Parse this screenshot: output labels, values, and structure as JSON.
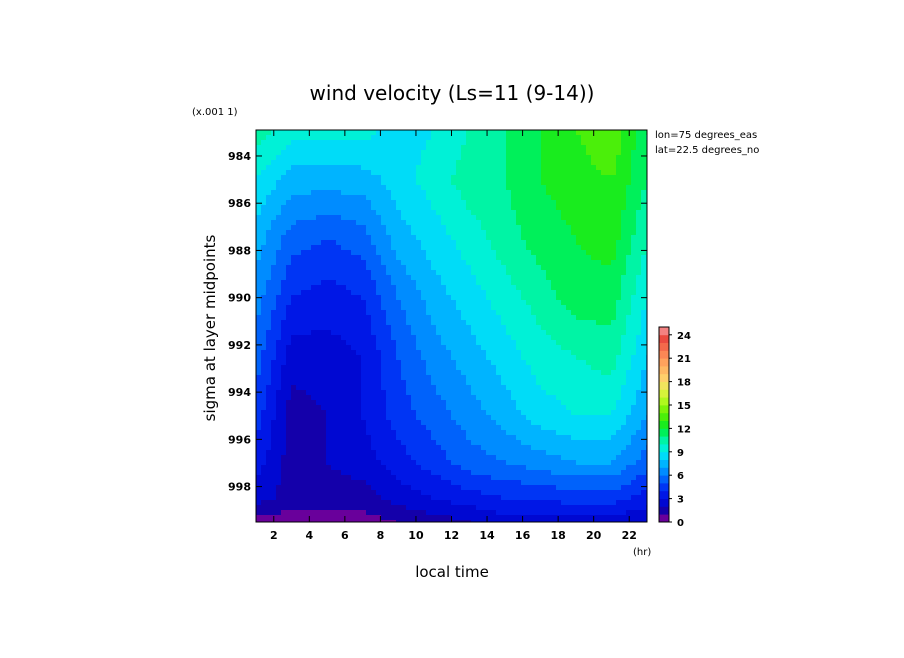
{
  "chart_data": {
    "type": "heatmap",
    "title": "wind velocity (Ls=11 (9-14))",
    "scale_note": "(x.001 1)",
    "xlabel": "local time",
    "x_unit": "(hr)",
    "ylabel": "sigma at layer midpoints",
    "xlim": [
      1,
      23
    ],
    "ylim": [
      0.9995,
      0.9829
    ],
    "x_ticks": [
      "2",
      "4",
      "6",
      "8",
      "10",
      "12",
      "14",
      "16",
      "18",
      "20",
      "22"
    ],
    "y_ticks": [
      "984",
      "986",
      "988",
      "990",
      "992",
      "994",
      "996",
      "998"
    ],
    "annotations": [
      "lon=75 degrees_eas",
      "lat=22.5 degrees_no"
    ],
    "colorbar": {
      "min": 0,
      "max": 25,
      "step": 1,
      "tick_labels": [
        "0",
        "3",
        "6",
        "9",
        "12",
        "15",
        "18",
        "21",
        "24"
      ]
    },
    "x": [
      1,
      3,
      5,
      7,
      9,
      11,
      13,
      15,
      17,
      19,
      21,
      23
    ],
    "y": [
      0.9829,
      0.985,
      0.9875,
      0.99,
      0.9925,
      0.995,
      0.997,
      0.9985,
      0.9995
    ],
    "z": [
      [
        10.5,
        9.5,
        9.5,
        9.5,
        8.5,
        9.0,
        10.0,
        11.0,
        12.0,
        13.0,
        14.0,
        11.0
      ],
      [
        9.0,
        7.5,
        7.5,
        7.5,
        8.5,
        9.5,
        10.5,
        11.0,
        12.0,
        12.5,
        13.0,
        11.0
      ],
      [
        7.5,
        5.5,
        5.0,
        5.5,
        7.5,
        8.5,
        9.5,
        10.5,
        11.5,
        12.0,
        12.5,
        10.0
      ],
      [
        6.5,
        4.0,
        3.5,
        4.0,
        6.0,
        7.5,
        8.5,
        9.5,
        10.5,
        11.5,
        11.5,
        9.0
      ],
      [
        5.5,
        2.5,
        2.5,
        3.0,
        5.0,
        6.5,
        7.5,
        8.5,
        9.5,
        10.0,
        10.5,
        8.0
      ],
      [
        4.5,
        1.5,
        2.0,
        3.0,
        4.5,
        5.5,
        6.5,
        7.5,
        8.5,
        9.0,
        9.0,
        7.0
      ],
      [
        3.5,
        1.5,
        2.0,
        2.5,
        3.5,
        4.5,
        5.5,
        6.0,
        6.5,
        7.0,
        7.0,
        5.5
      ],
      [
        2.5,
        1.5,
        1.5,
        1.5,
        2.5,
        3.0,
        3.5,
        4.0,
        4.0,
        4.5,
        4.5,
        3.5
      ],
      [
        0.5,
        0.5,
        0.5,
        0.5,
        1.0,
        1.5,
        2.0,
        2.5,
        2.5,
        2.5,
        2.5,
        2.0
      ]
    ]
  }
}
